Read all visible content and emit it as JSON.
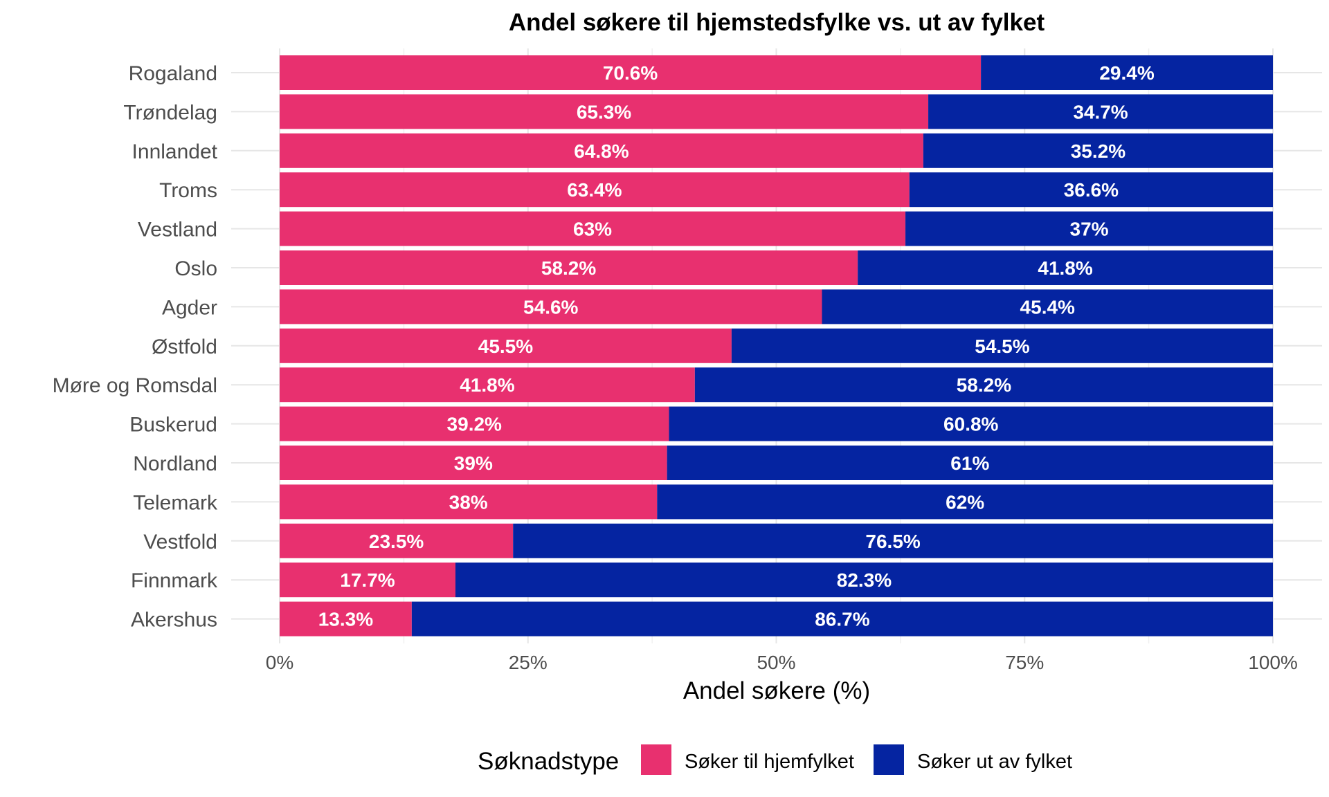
{
  "chart_data": {
    "type": "bar",
    "orientation": "horizontal",
    "stacked": true,
    "title": "Andel søkere til hjemstedsfylke vs. ut av fylket",
    "xlabel": "Andel søkere (%)",
    "ylabel": "",
    "xlim": [
      0,
      100
    ],
    "x_ticks": [
      "0%",
      "25%",
      "50%",
      "75%",
      "100%"
    ],
    "x_tick_values": [
      0,
      25,
      50,
      75,
      100
    ],
    "grid": true,
    "legend_position": "bottom",
    "legend_title": "Søknadstype",
    "categories": [
      "Rogaland",
      "Trøndelag",
      "Innlandet",
      "Troms",
      "Vestland",
      "Oslo",
      "Agder",
      "Østfold",
      "Møre og Romsdal",
      "Buskerud",
      "Nordland",
      "Telemark",
      "Vestfold",
      "Finnmark",
      "Akershus"
    ],
    "series": [
      {
        "name": "Søker til hjemfylket",
        "color": "#E8306F",
        "values": [
          70.6,
          65.3,
          64.8,
          63.4,
          63,
          58.2,
          54.6,
          45.5,
          41.8,
          39.2,
          39,
          38,
          23.5,
          17.7,
          13.3
        ],
        "labels": [
          "70.6%",
          "65.3%",
          "64.8%",
          "63.4%",
          "63%",
          "58.2%",
          "54.6%",
          "45.5%",
          "41.8%",
          "39.2%",
          "39%",
          "38%",
          "23.5%",
          "17.7%",
          "13.3%"
        ]
      },
      {
        "name": "Søker ut av fylket",
        "color": "#0524A1",
        "values": [
          29.4,
          34.7,
          35.2,
          36.6,
          37,
          41.8,
          45.4,
          54.5,
          58.2,
          60.8,
          61,
          62,
          76.5,
          82.3,
          86.7
        ],
        "labels": [
          "29.4%",
          "34.7%",
          "35.2%",
          "36.6%",
          "37%",
          "41.8%",
          "45.4%",
          "54.5%",
          "58.2%",
          "60.8%",
          "61%",
          "62%",
          "76.5%",
          "82.3%",
          "86.7%"
        ]
      }
    ]
  }
}
